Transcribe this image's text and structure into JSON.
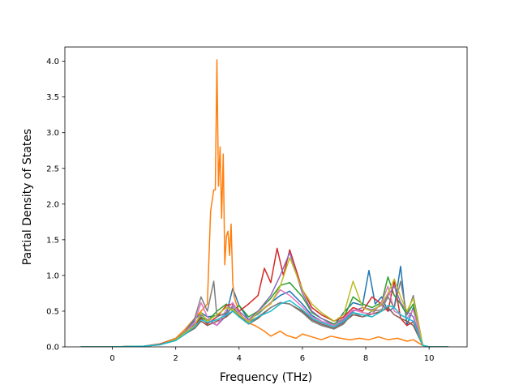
{
  "chart_data": {
    "type": "line",
    "title": "",
    "xlabel": "Frequency (THz)",
    "ylabel": "Partial Density of States",
    "xlim": [
      -1.5,
      11.2
    ],
    "ylim": [
      0,
      4.2
    ],
    "xticks": [
      0,
      2,
      4,
      6,
      8,
      10
    ],
    "yticks": [
      0.0,
      0.5,
      1.0,
      1.5,
      2.0,
      2.5,
      3.0,
      3.5,
      4.0
    ],
    "grid": false,
    "legend": "none",
    "colors": [
      "#1f77b4",
      "#ff7f0e",
      "#2ca02c",
      "#d62728",
      "#9467bd",
      "#8c564b",
      "#e377c2",
      "#7f7f7f",
      "#bcbd22",
      "#17becf"
    ],
    "series": [
      {
        "x": [
          -1,
          0,
          1,
          1.5,
          2,
          2.3,
          2.6,
          2.8,
          3.0,
          3.3,
          3.6,
          3.8,
          4.0,
          4.3,
          4.6,
          5.0,
          5.3,
          5.6,
          6.0,
          6.3,
          6.6,
          7.0,
          7.3,
          7.6,
          7.9,
          8.1,
          8.3,
          8.5,
          8.7,
          8.9,
          9.1,
          9.3,
          9.5,
          9.8,
          10,
          10.6
        ],
        "y": [
          0,
          0,
          0.01,
          0.04,
          0.12,
          0.2,
          0.38,
          0.48,
          0.42,
          0.44,
          0.46,
          0.82,
          0.58,
          0.38,
          0.46,
          0.62,
          0.72,
          0.78,
          0.6,
          0.44,
          0.36,
          0.3,
          0.48,
          0.62,
          0.58,
          1.07,
          0.6,
          0.7,
          0.5,
          0.55,
          1.13,
          0.3,
          0.55,
          0.02,
          0,
          0
        ]
      },
      {
        "x": [
          -1,
          0,
          1,
          1.5,
          2,
          2.3,
          2.6,
          2.8,
          3.0,
          3.1,
          3.2,
          3.25,
          3.3,
          3.35,
          3.4,
          3.45,
          3.5,
          3.55,
          3.6,
          3.65,
          3.7,
          3.75,
          3.8,
          3.85,
          3.9,
          4.0,
          4.2,
          4.5,
          4.8,
          5.0,
          5.3,
          5.5,
          5.8,
          6.0,
          6.3,
          6.6,
          6.9,
          7.2,
          7.5,
          7.8,
          8.1,
          8.4,
          8.7,
          9.0,
          9.3,
          9.5,
          9.8,
          10,
          10.6
        ],
        "y": [
          0,
          0,
          0.01,
          0.04,
          0.12,
          0.25,
          0.4,
          0.5,
          0.6,
          1.9,
          2.2,
          2.2,
          4.02,
          2.25,
          2.8,
          1.8,
          2.7,
          1.15,
          1.55,
          1.62,
          1.28,
          1.72,
          0.9,
          0.7,
          0.62,
          0.5,
          0.35,
          0.3,
          0.22,
          0.15,
          0.22,
          0.16,
          0.12,
          0.18,
          0.14,
          0.1,
          0.15,
          0.12,
          0.1,
          0.12,
          0.1,
          0.14,
          0.1,
          0.12,
          0.08,
          0.1,
          0.02,
          0,
          0
        ]
      },
      {
        "x": [
          -1,
          0,
          1,
          1.5,
          2,
          2.3,
          2.6,
          2.8,
          3.0,
          3.3,
          3.6,
          3.8,
          4.0,
          4.3,
          4.6,
          5.0,
          5.3,
          5.6,
          6.0,
          6.3,
          6.6,
          7.0,
          7.3,
          7.6,
          7.9,
          8.2,
          8.5,
          8.7,
          8.9,
          9.1,
          9.3,
          9.5,
          9.8,
          10,
          10.6
        ],
        "y": [
          0,
          0,
          0.01,
          0.03,
          0.1,
          0.2,
          0.3,
          0.42,
          0.36,
          0.5,
          0.6,
          0.5,
          0.58,
          0.42,
          0.5,
          0.68,
          0.86,
          0.9,
          0.7,
          0.48,
          0.4,
          0.32,
          0.4,
          0.7,
          0.6,
          0.55,
          0.62,
          0.98,
          0.72,
          0.6,
          0.45,
          0.6,
          0.02,
          0,
          0
        ]
      },
      {
        "x": [
          -1,
          0,
          1,
          1.5,
          2,
          2.3,
          2.6,
          2.8,
          3.0,
          3.3,
          3.6,
          3.8,
          4.0,
          4.3,
          4.6,
          4.8,
          5.0,
          5.2,
          5.4,
          5.6,
          6.0,
          6.3,
          6.6,
          7.0,
          7.3,
          7.6,
          7.9,
          8.2,
          8.5,
          8.7,
          8.9,
          9.1,
          9.3,
          9.5,
          9.8,
          10,
          10.6
        ],
        "y": [
          0,
          0,
          0.01,
          0.04,
          0.1,
          0.18,
          0.3,
          0.4,
          0.32,
          0.42,
          0.58,
          0.6,
          0.5,
          0.6,
          0.72,
          1.1,
          0.9,
          1.38,
          1.0,
          1.36,
          0.8,
          0.55,
          0.45,
          0.36,
          0.42,
          0.55,
          0.5,
          0.7,
          0.6,
          0.5,
          0.92,
          0.4,
          0.3,
          0.35,
          0.02,
          0,
          0
        ]
      },
      {
        "x": [
          -1,
          0,
          1,
          1.5,
          2,
          2.3,
          2.6,
          2.8,
          3.0,
          3.3,
          3.6,
          3.8,
          4.0,
          4.3,
          4.6,
          5.0,
          5.3,
          5.6,
          6.0,
          6.3,
          6.6,
          7.0,
          7.3,
          7.6,
          7.9,
          8.2,
          8.5,
          8.7,
          8.9,
          9.1,
          9.3,
          9.5,
          9.8,
          10,
          10.6
        ],
        "y": [
          0,
          0,
          0.01,
          0.03,
          0.1,
          0.2,
          0.32,
          0.45,
          0.38,
          0.3,
          0.44,
          0.58,
          0.5,
          0.38,
          0.5,
          0.72,
          1.0,
          1.32,
          0.75,
          0.5,
          0.4,
          0.3,
          0.38,
          0.5,
          0.55,
          0.52,
          0.58,
          0.72,
          0.85,
          0.62,
          0.5,
          0.42,
          0.02,
          0,
          0
        ]
      },
      {
        "x": [
          -1,
          0,
          1,
          1.5,
          2,
          2.3,
          2.6,
          2.8,
          3.0,
          3.3,
          3.6,
          3.8,
          4.0,
          4.3,
          4.6,
          5.0,
          5.3,
          5.6,
          6.0,
          6.3,
          6.6,
          7.0,
          7.3,
          7.6,
          7.9,
          8.2,
          8.5,
          8.7,
          8.9,
          9.1,
          9.3,
          9.5,
          9.8,
          10,
          10.6
        ],
        "y": [
          0,
          0,
          0.01,
          0.03,
          0.09,
          0.18,
          0.26,
          0.36,
          0.3,
          0.36,
          0.42,
          0.5,
          0.44,
          0.32,
          0.4,
          0.55,
          0.62,
          0.6,
          0.5,
          0.38,
          0.32,
          0.26,
          0.34,
          0.45,
          0.42,
          0.46,
          0.5,
          0.55,
          0.45,
          0.4,
          0.36,
          0.3,
          0.02,
          0,
          0
        ]
      },
      {
        "x": [
          -1,
          0,
          1,
          1.5,
          2,
          2.3,
          2.6,
          2.8,
          3.0,
          3.3,
          3.6,
          3.8,
          4.0,
          4.3,
          4.6,
          5.0,
          5.3,
          5.6,
          6.0,
          6.3,
          6.6,
          7.0,
          7.3,
          7.6,
          7.9,
          8.2,
          8.5,
          8.7,
          8.9,
          9.1,
          9.3,
          9.5,
          9.8,
          10,
          10.6
        ],
        "y": [
          0,
          0,
          0.01,
          0.03,
          0.1,
          0.2,
          0.35,
          0.62,
          0.42,
          0.3,
          0.52,
          0.62,
          0.46,
          0.36,
          0.48,
          0.62,
          0.8,
          0.72,
          0.56,
          0.42,
          0.36,
          0.3,
          0.4,
          0.52,
          0.48,
          0.46,
          0.62,
          0.85,
          0.5,
          0.45,
          0.4,
          0.52,
          0.02,
          0,
          0
        ]
      },
      {
        "x": [
          -1,
          0,
          1,
          1.5,
          2,
          2.3,
          2.6,
          2.8,
          3.0,
          3.2,
          3.3,
          3.6,
          3.8,
          4.0,
          4.3,
          4.6,
          5.0,
          5.3,
          5.6,
          6.0,
          6.3,
          6.6,
          7.0,
          7.3,
          7.6,
          7.9,
          8.2,
          8.5,
          8.7,
          8.9,
          9.1,
          9.3,
          9.5,
          9.8,
          10,
          10.6
        ],
        "y": [
          0,
          0,
          0.01,
          0.03,
          0.1,
          0.22,
          0.4,
          0.7,
          0.5,
          0.92,
          0.42,
          0.48,
          0.55,
          0.45,
          0.35,
          0.42,
          0.55,
          0.62,
          0.6,
          0.48,
          0.36,
          0.3,
          0.25,
          0.32,
          0.48,
          0.42,
          0.5,
          0.52,
          0.7,
          0.55,
          0.92,
          0.45,
          0.72,
          0.02,
          0,
          0
        ]
      },
      {
        "x": [
          -1,
          0,
          1,
          1.5,
          2,
          2.3,
          2.6,
          2.8,
          3.0,
          3.3,
          3.6,
          3.8,
          4.0,
          4.3,
          4.6,
          5.0,
          5.3,
          5.6,
          6.0,
          6.3,
          6.6,
          7.0,
          7.3,
          7.6,
          7.9,
          8.2,
          8.5,
          8.7,
          8.9,
          9.1,
          9.3,
          9.5,
          9.8,
          10,
          10.6
        ],
        "y": [
          0,
          0,
          0.01,
          0.03,
          0.1,
          0.2,
          0.3,
          0.48,
          0.36,
          0.45,
          0.55,
          0.52,
          0.45,
          0.35,
          0.48,
          0.6,
          0.85,
          1.25,
          0.8,
          0.6,
          0.48,
          0.36,
          0.45,
          0.92,
          0.55,
          0.5,
          0.6,
          0.75,
          0.95,
          0.7,
          0.5,
          0.68,
          0.02,
          0,
          0
        ]
      },
      {
        "x": [
          -1,
          0,
          1,
          1.5,
          2,
          2.3,
          2.6,
          2.8,
          3.0,
          3.3,
          3.6,
          3.8,
          4.0,
          4.3,
          4.6,
          5.0,
          5.3,
          5.6,
          6.0,
          6.3,
          6.6,
          7.0,
          7.3,
          7.6,
          7.9,
          8.2,
          8.5,
          8.7,
          8.9,
          9.1,
          9.3,
          9.5,
          9.8,
          10,
          10.6
        ],
        "y": [
          0,
          0,
          0.01,
          0.03,
          0.09,
          0.18,
          0.28,
          0.38,
          0.34,
          0.38,
          0.45,
          0.5,
          0.42,
          0.32,
          0.42,
          0.5,
          0.6,
          0.65,
          0.52,
          0.4,
          0.34,
          0.28,
          0.36,
          0.48,
          0.45,
          0.42,
          0.5,
          0.58,
          0.55,
          0.45,
          0.4,
          0.36,
          0.02,
          0,
          0
        ]
      }
    ]
  }
}
